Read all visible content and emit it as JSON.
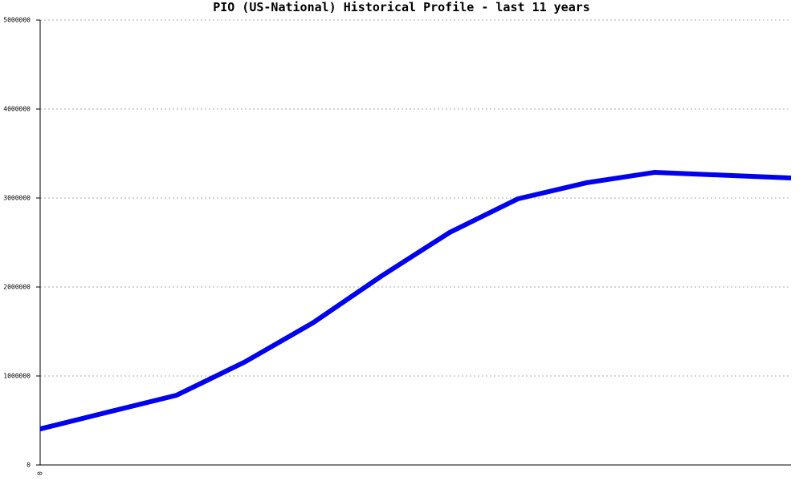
{
  "chart_data": {
    "type": "line",
    "title": "PIO (US-National) Historical Profile - last 11 years",
    "categories": [
      "0",
      null,
      null,
      null,
      null,
      null,
      null,
      null,
      null,
      null,
      null,
      null
    ],
    "series": [
      {
        "name": "PIO",
        "color": "#0000ee",
        "values": [
          405000,
          595000,
          784000,
          1158000,
          1599000,
          2123000,
          2613000,
          2991000,
          3171000,
          3288000,
          3257000,
          3225000
        ]
      }
    ],
    "ylim": [
      0,
      5000000
    ],
    "yticks": [
      0,
      1000000,
      2000000,
      3000000,
      4000000,
      5000000
    ],
    "grid": true
  }
}
